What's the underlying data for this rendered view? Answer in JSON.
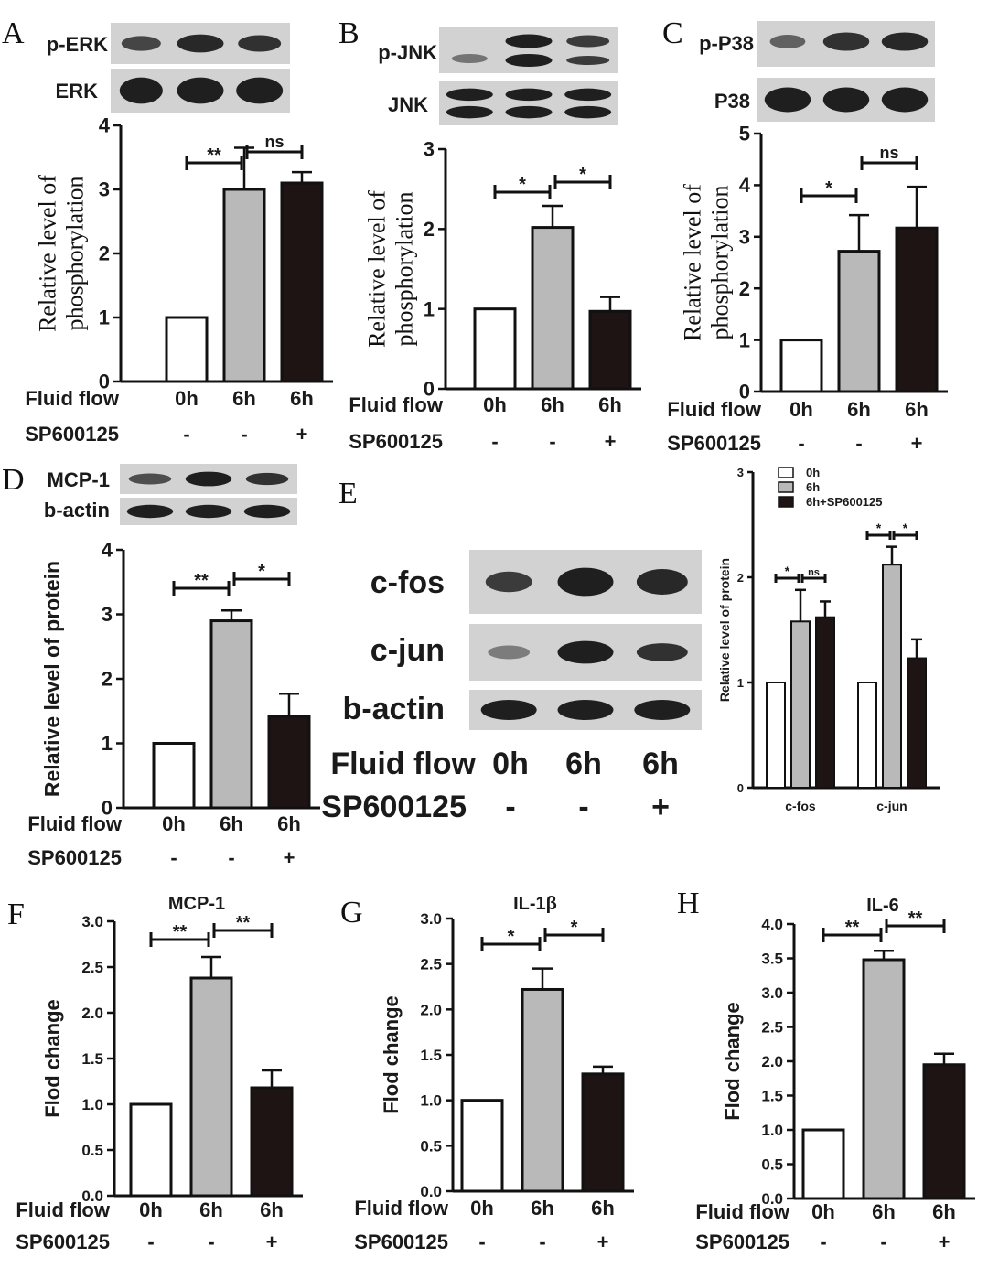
{
  "figure": {
    "treatment_labels": {
      "fluid_flow": "Fluid flow",
      "sp600125": "SP600125"
    },
    "colors": {
      "bar_0h": "#ffffff",
      "bar_6h": "#b9b9b9",
      "bar_6h_sp": "#1e1414",
      "bar_edge": "#111111",
      "blot_band": "#151515",
      "blot_background": "#d2d2d2"
    }
  },
  "chart_data": [
    {
      "panel": "A",
      "type": "bar",
      "blots": [
        "p-ERK",
        "ERK"
      ],
      "ylabel": "Relative level of phosphorylation",
      "ylim": [
        0,
        4
      ],
      "yticks": [
        "0",
        "1",
        "2",
        "3",
        "4"
      ],
      "categories": [
        "0h",
        "6h",
        "6h"
      ],
      "inhibitor": [
        "-",
        "-",
        "+"
      ],
      "values": [
        1.0,
        3.0,
        3.1
      ],
      "errors": [
        0,
        0.65,
        0.17
      ],
      "significance": [
        {
          "from": 0,
          "to": 1,
          "label": "**"
        },
        {
          "from": 1,
          "to": 2,
          "label": "ns"
        }
      ]
    },
    {
      "panel": "B",
      "type": "bar",
      "blots": [
        "p-JNK",
        "JNK"
      ],
      "ylabel": "Relative level of phosphorylation",
      "ylim": [
        0,
        3
      ],
      "yticks": [
        "0",
        "1",
        "2",
        "3"
      ],
      "categories": [
        "0h",
        "6h",
        "6h"
      ],
      "inhibitor": [
        "-",
        "-",
        "+"
      ],
      "values": [
        1.0,
        2.02,
        0.97
      ],
      "errors": [
        0,
        0.27,
        0.18
      ],
      "significance": [
        {
          "from": 0,
          "to": 1,
          "label": "*"
        },
        {
          "from": 1,
          "to": 2,
          "label": "*"
        }
      ]
    },
    {
      "panel": "C",
      "type": "bar",
      "blots": [
        "p-P38",
        "P38"
      ],
      "ylabel": "Relative level of phosphorylation",
      "ylim": [
        0,
        5
      ],
      "yticks": [
        "0",
        "1",
        "2",
        "3",
        "4",
        "5"
      ],
      "categories": [
        "0h",
        "6h",
        "6h"
      ],
      "inhibitor": [
        "-",
        "-",
        "+"
      ],
      "values": [
        1.0,
        2.72,
        3.17
      ],
      "errors": [
        0,
        0.7,
        0.8
      ],
      "significance": [
        {
          "from": 0,
          "to": 1,
          "label": "*"
        },
        {
          "from": 1,
          "to": 2,
          "label": "ns"
        }
      ]
    },
    {
      "panel": "D",
      "type": "bar",
      "blots": [
        "MCP-1",
        "b-actin"
      ],
      "ylabel": "Relative level of protein",
      "ylim": [
        0,
        4
      ],
      "yticks": [
        "0",
        "1",
        "2",
        "3",
        "4"
      ],
      "categories": [
        "0h",
        "6h",
        "6h"
      ],
      "inhibitor": [
        "-",
        "-",
        "+"
      ],
      "values": [
        1.0,
        2.9,
        1.42
      ],
      "errors": [
        0,
        0.16,
        0.35
      ],
      "significance": [
        {
          "from": 0,
          "to": 1,
          "label": "**"
        },
        {
          "from": 1,
          "to": 2,
          "label": "*"
        }
      ]
    },
    {
      "panel": "E",
      "type": "bar",
      "blots": [
        "c-fos",
        "c-jun",
        "b-actin"
      ],
      "blot_conditions": [
        "0h",
        "6h",
        "6h"
      ],
      "blot_inhibitor": [
        "-",
        "-",
        "+"
      ],
      "ylabel": "Relative level of protein",
      "ylim": [
        0,
        3
      ],
      "yticks": [
        "0",
        "1",
        "2",
        "3"
      ],
      "categories": [
        "c-fos",
        "c-jun"
      ],
      "legend": [
        "0h",
        "6h",
        "6h+SP600125"
      ],
      "series": [
        {
          "name": "0h",
          "values": [
            1.0,
            1.0
          ],
          "errors": [
            0,
            0
          ]
        },
        {
          "name": "6h",
          "values": [
            1.58,
            2.12
          ],
          "errors": [
            0.3,
            0.17
          ]
        },
        {
          "name": "6h+SP600125",
          "values": [
            1.62,
            1.23
          ],
          "errors": [
            0.15,
            0.18
          ]
        }
      ],
      "significance": [
        {
          "group": 0,
          "from": 0,
          "to": 1,
          "label": "*"
        },
        {
          "group": 0,
          "from": 1,
          "to": 2,
          "label": "ns"
        },
        {
          "group": 1,
          "from": 0,
          "to": 1,
          "label": "*"
        },
        {
          "group": 1,
          "from": 1,
          "to": 2,
          "label": "*"
        }
      ]
    },
    {
      "panel": "F",
      "type": "bar",
      "title": "MCP-1",
      "ylabel": "Flod change",
      "ylim": [
        0,
        3.0
      ],
      "yticks": [
        "0.0",
        "0.5",
        "1.0",
        "1.5",
        "2.0",
        "2.5",
        "3.0"
      ],
      "categories": [
        "0h",
        "6h",
        "6h"
      ],
      "inhibitor": [
        "-",
        "-",
        "+"
      ],
      "values": [
        1.0,
        2.38,
        1.18
      ],
      "errors": [
        0,
        0.23,
        0.19
      ],
      "significance": [
        {
          "from": 0,
          "to": 1,
          "label": "**"
        },
        {
          "from": 1,
          "to": 2,
          "label": "**"
        }
      ]
    },
    {
      "panel": "G",
      "type": "bar",
      "title": "IL-1β",
      "ylabel": "Flod change",
      "ylim": [
        0,
        3.0
      ],
      "yticks": [
        "0.0",
        "0.5",
        "1.0",
        "1.5",
        "2.0",
        "2.5",
        "3.0"
      ],
      "categories": [
        "0h",
        "6h",
        "6h"
      ],
      "inhibitor": [
        "-",
        "-",
        "+"
      ],
      "values": [
        1.0,
        2.22,
        1.29
      ],
      "errors": [
        0,
        0.23,
        0.08
      ],
      "significance": [
        {
          "from": 0,
          "to": 1,
          "label": "*"
        },
        {
          "from": 1,
          "to": 2,
          "label": "*"
        }
      ]
    },
    {
      "panel": "H",
      "type": "bar",
      "title": "IL-6",
      "ylabel": "Flod change",
      "ylim": [
        0,
        4.0
      ],
      "yticks": [
        "0.0",
        "0.5",
        "1.0",
        "1.5",
        "2.0",
        "2.5",
        "3.0",
        "3.5",
        "4.0"
      ],
      "categories": [
        "0h",
        "6h",
        "6h"
      ],
      "inhibitor": [
        "-",
        "-",
        "+"
      ],
      "values": [
        1.0,
        3.48,
        1.95
      ],
      "errors": [
        0,
        0.13,
        0.16
      ],
      "significance": [
        {
          "from": 0,
          "to": 1,
          "label": "**"
        },
        {
          "from": 1,
          "to": 2,
          "label": "**"
        }
      ]
    }
  ]
}
